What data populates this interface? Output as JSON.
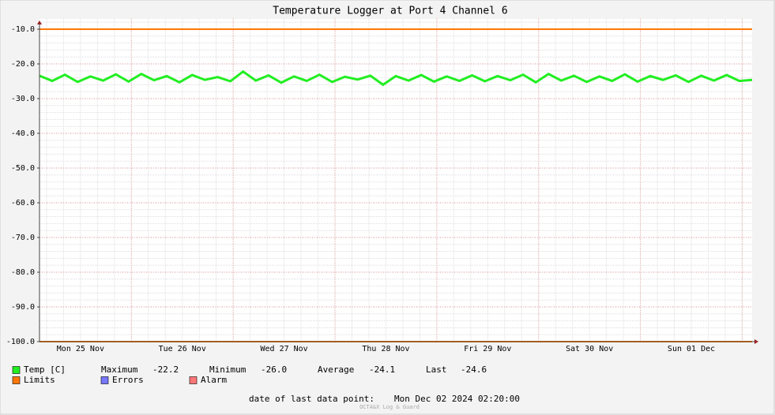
{
  "chart_data": {
    "type": "line",
    "title": "Temperature Logger at Port 4 Channel 6",
    "xlim": [
      "2024-11-25T02:20",
      "2024-12-02T02:20"
    ],
    "ylim": [
      -100,
      -7
    ],
    "yticks": [
      {
        "value": -100,
        "label": "-100.0"
      },
      {
        "value": -90,
        "label": "-90.0"
      },
      {
        "value": -80,
        "label": "-80.0"
      },
      {
        "value": -70,
        "label": "-70.0"
      },
      {
        "value": -60,
        "label": "-60.0"
      },
      {
        "value": -50,
        "label": "-50.0"
      },
      {
        "value": -40,
        "label": "-40.0"
      },
      {
        "value": -30,
        "label": "-30.0"
      },
      {
        "value": -20,
        "label": "-20.0"
      },
      {
        "value": -10,
        "label": "-10.0"
      }
    ],
    "xticks": [
      {
        "value": "2024-11-25T12:00",
        "label": "Mon 25 Nov"
      },
      {
        "value": "2024-11-26T12:00",
        "label": "Tue 26 Nov"
      },
      {
        "value": "2024-11-27T12:00",
        "label": "Wed 27 Nov"
      },
      {
        "value": "2024-11-28T12:00",
        "label": "Thu 28 Nov"
      },
      {
        "value": "2024-11-29T12:00",
        "label": "Fri 29 Nov"
      },
      {
        "value": "2024-11-30T12:00",
        "label": "Sat 30 Nov"
      },
      {
        "value": "2024-12-01T12:00",
        "label": "Sun 01 Dec"
      }
    ],
    "grid": true,
    "series": [
      {
        "name": "Temp [C]",
        "color": "#22ee22",
        "x": [
          "2024-11-25T02:20",
          "2024-11-25T05:20",
          "2024-11-25T08:20",
          "2024-11-25T11:20",
          "2024-11-25T14:20",
          "2024-11-25T17:20",
          "2024-11-25T20:20",
          "2024-11-25T23:20",
          "2024-11-26T02:20",
          "2024-11-26T05:20",
          "2024-11-26T08:20",
          "2024-11-26T11:20",
          "2024-11-26T14:20",
          "2024-11-26T17:20",
          "2024-11-26T20:20",
          "2024-11-26T23:20",
          "2024-11-27T02:20",
          "2024-11-27T05:20",
          "2024-11-27T08:20",
          "2024-11-27T11:20",
          "2024-11-27T14:20",
          "2024-11-27T17:20",
          "2024-11-27T20:20",
          "2024-11-27T23:20",
          "2024-11-28T02:20",
          "2024-11-28T05:20",
          "2024-11-28T08:20",
          "2024-11-28T11:20",
          "2024-11-28T14:20",
          "2024-11-28T17:20",
          "2024-11-28T20:20",
          "2024-11-28T23:20",
          "2024-11-29T02:20",
          "2024-11-29T05:20",
          "2024-11-29T08:20",
          "2024-11-29T11:20",
          "2024-11-29T14:20",
          "2024-11-29T17:20",
          "2024-11-29T20:20",
          "2024-11-29T23:20",
          "2024-11-30T02:20",
          "2024-11-30T05:20",
          "2024-11-30T08:20",
          "2024-11-30T11:20",
          "2024-11-30T14:20",
          "2024-11-30T17:20",
          "2024-11-30T20:20",
          "2024-11-30T23:20",
          "2024-12-01T02:20",
          "2024-12-01T05:20",
          "2024-12-01T08:20",
          "2024-12-01T11:20",
          "2024-12-01T14:20",
          "2024-12-01T17:20",
          "2024-12-01T20:20",
          "2024-12-01T23:20",
          "2024-12-02T02:20"
        ],
        "values": [
          -23.4,
          -24.9,
          -23.1,
          -25.2,
          -23.6,
          -24.8,
          -23.0,
          -25.1,
          -22.9,
          -24.7,
          -23.5,
          -25.3,
          -23.2,
          -24.6,
          -23.8,
          -25.0,
          -22.2,
          -24.8,
          -23.3,
          -25.4,
          -23.6,
          -24.9,
          -23.1,
          -25.2,
          -23.7,
          -24.5,
          -23.4,
          -26.0,
          -23.5,
          -24.8,
          -23.2,
          -25.1,
          -23.6,
          -24.9,
          -23.3,
          -25.0,
          -23.5,
          -24.7,
          -23.1,
          -25.3,
          -22.9,
          -24.8,
          -23.4,
          -25.2,
          -23.6,
          -24.9,
          -23.0,
          -25.1,
          -23.5,
          -24.6,
          -23.3,
          -25.2,
          -23.4,
          -24.8,
          -23.2,
          -24.9,
          -24.6
        ]
      }
    ],
    "limits": {
      "name": "Limits",
      "color": "#ff7700",
      "values": [
        -10,
        -100
      ]
    },
    "legend_extra": [
      {
        "name": "Errors",
        "color": "#7777ff"
      },
      {
        "name": "Alarm",
        "color": "#ff7777"
      }
    ],
    "stats": [
      {
        "name": "Maximum",
        "value": -22.2
      },
      {
        "name": "Minimum",
        "value": -26,
        "value_label": "-26.0"
      },
      {
        "name": "Average",
        "value": -24.1
      },
      {
        "name": "Last",
        "value": -24.6
      }
    ],
    "footer": {
      "label": "date of last data point:",
      "value": "Mon Dec 02 2024 02:20:00"
    },
    "watermark": "OCTA&X Log & Guard"
  }
}
